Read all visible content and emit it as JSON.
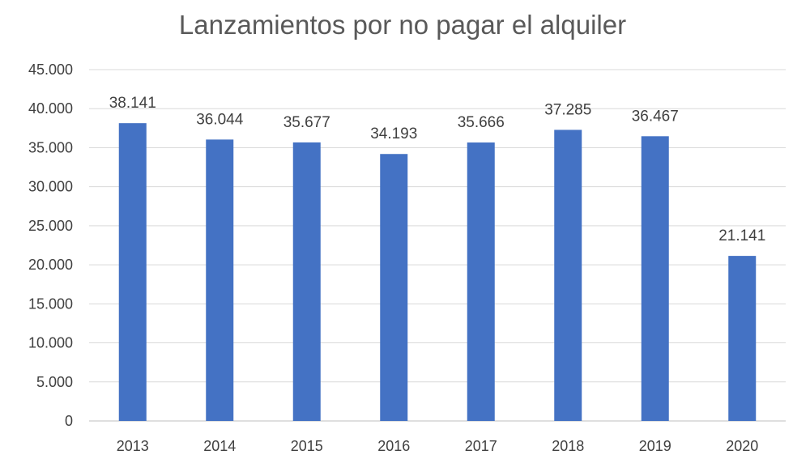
{
  "chart_data": {
    "type": "bar",
    "title": "Lanzamientos por no pagar el alquiler",
    "xlabel": "",
    "ylabel": "",
    "categories": [
      "2013",
      "2014",
      "2015",
      "2016",
      "2017",
      "2018",
      "2019",
      "2020"
    ],
    "values": [
      38141,
      36044,
      35677,
      34193,
      35666,
      37285,
      36467,
      21141
    ],
    "value_labels": [
      "38.141",
      "36.044",
      "35.677",
      "34.193",
      "35.666",
      "37.285",
      "36.467",
      "21.141"
    ],
    "ylim": [
      0,
      45000
    ],
    "ytick_values": [
      0,
      5000,
      10000,
      15000,
      20000,
      25000,
      30000,
      35000,
      40000,
      45000
    ],
    "ytick_labels": [
      "0",
      "5.000",
      "10.000",
      "15.000",
      "20.000",
      "25.000",
      "30.000",
      "35.000",
      "40.000",
      "45.000"
    ],
    "grid": true,
    "legend": "none",
    "bar_color": "#4472c4"
  }
}
